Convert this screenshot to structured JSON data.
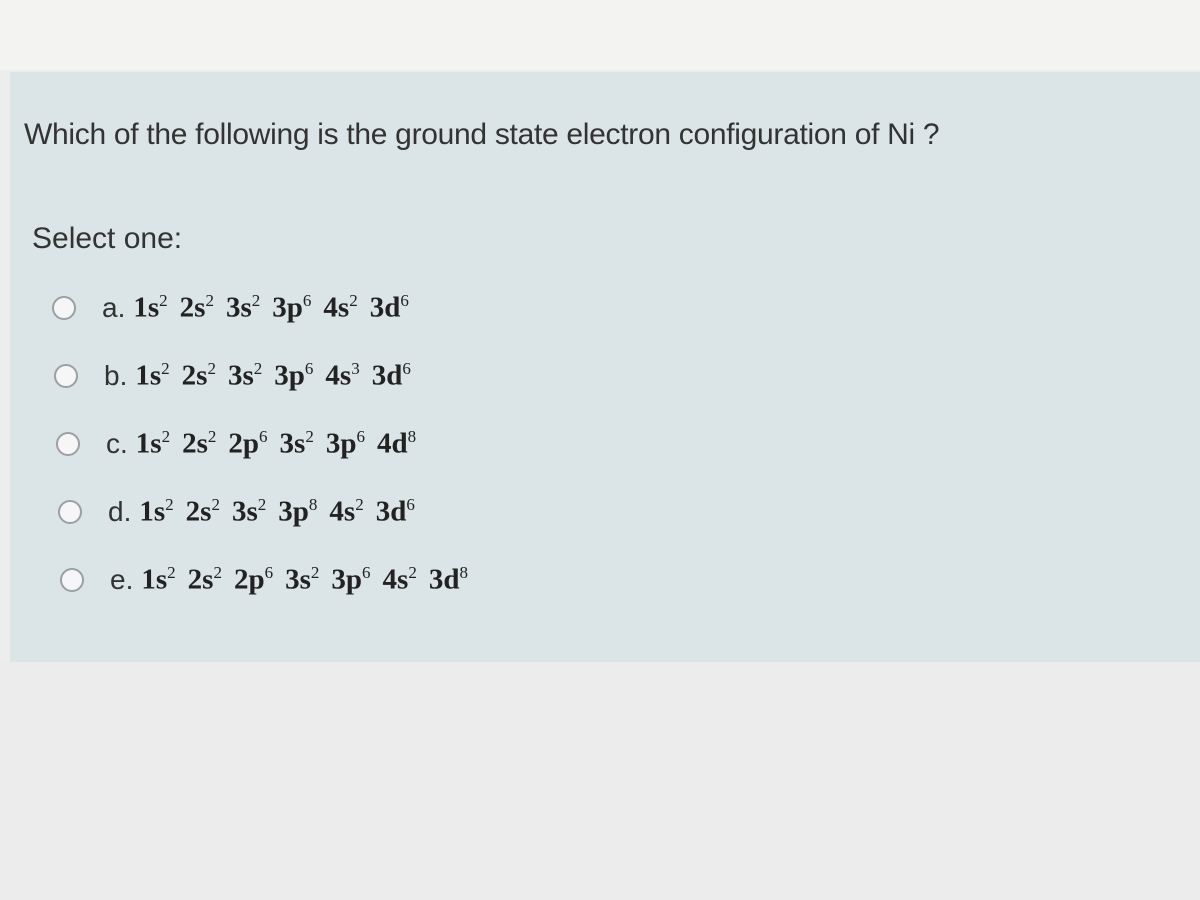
{
  "question": "Which of the following is the ground state electron configuration of Ni ?",
  "prompt": "Select one:",
  "options": [
    {
      "label": "a.",
      "terms": [
        {
          "orbital": "1s",
          "electrons": 2
        },
        {
          "orbital": "2s",
          "electrons": 2
        },
        {
          "orbital": "3s",
          "electrons": 2
        },
        {
          "orbital": "3p",
          "electrons": 6
        },
        {
          "orbital": "4s",
          "electrons": 2
        },
        {
          "orbital": "3d",
          "electrons": 6
        }
      ]
    },
    {
      "label": "b.",
      "terms": [
        {
          "orbital": "1s",
          "electrons": 2
        },
        {
          "orbital": "2s",
          "electrons": 2
        },
        {
          "orbital": "3s",
          "electrons": 2
        },
        {
          "orbital": "3p",
          "electrons": 6
        },
        {
          "orbital": "4s",
          "electrons": 3
        },
        {
          "orbital": "3d",
          "electrons": 6
        }
      ]
    },
    {
      "label": "c.",
      "terms": [
        {
          "orbital": "1s",
          "electrons": 2
        },
        {
          "orbital": "2s",
          "electrons": 2
        },
        {
          "orbital": "2p",
          "electrons": 6
        },
        {
          "orbital": "3s",
          "electrons": 2
        },
        {
          "orbital": "3p",
          "electrons": 6
        },
        {
          "orbital": "4d",
          "electrons": 8
        }
      ]
    },
    {
      "label": "d.",
      "terms": [
        {
          "orbital": "1s",
          "electrons": 2
        },
        {
          "orbital": "2s",
          "electrons": 2
        },
        {
          "orbital": "3s",
          "electrons": 2
        },
        {
          "orbital": "3p",
          "electrons": 8
        },
        {
          "orbital": "4s",
          "electrons": 2
        },
        {
          "orbital": "3d",
          "electrons": 6
        }
      ]
    },
    {
      "label": "e.",
      "terms": [
        {
          "orbital": "1s",
          "electrons": 2
        },
        {
          "orbital": "2s",
          "electrons": 2
        },
        {
          "orbital": "2p",
          "electrons": 6
        },
        {
          "orbital": "3s",
          "electrons": 2
        },
        {
          "orbital": "3p",
          "electrons": 6
        },
        {
          "orbital": "4s",
          "electrons": 2
        },
        {
          "orbital": "3d",
          "electrons": 8
        }
      ]
    }
  ]
}
